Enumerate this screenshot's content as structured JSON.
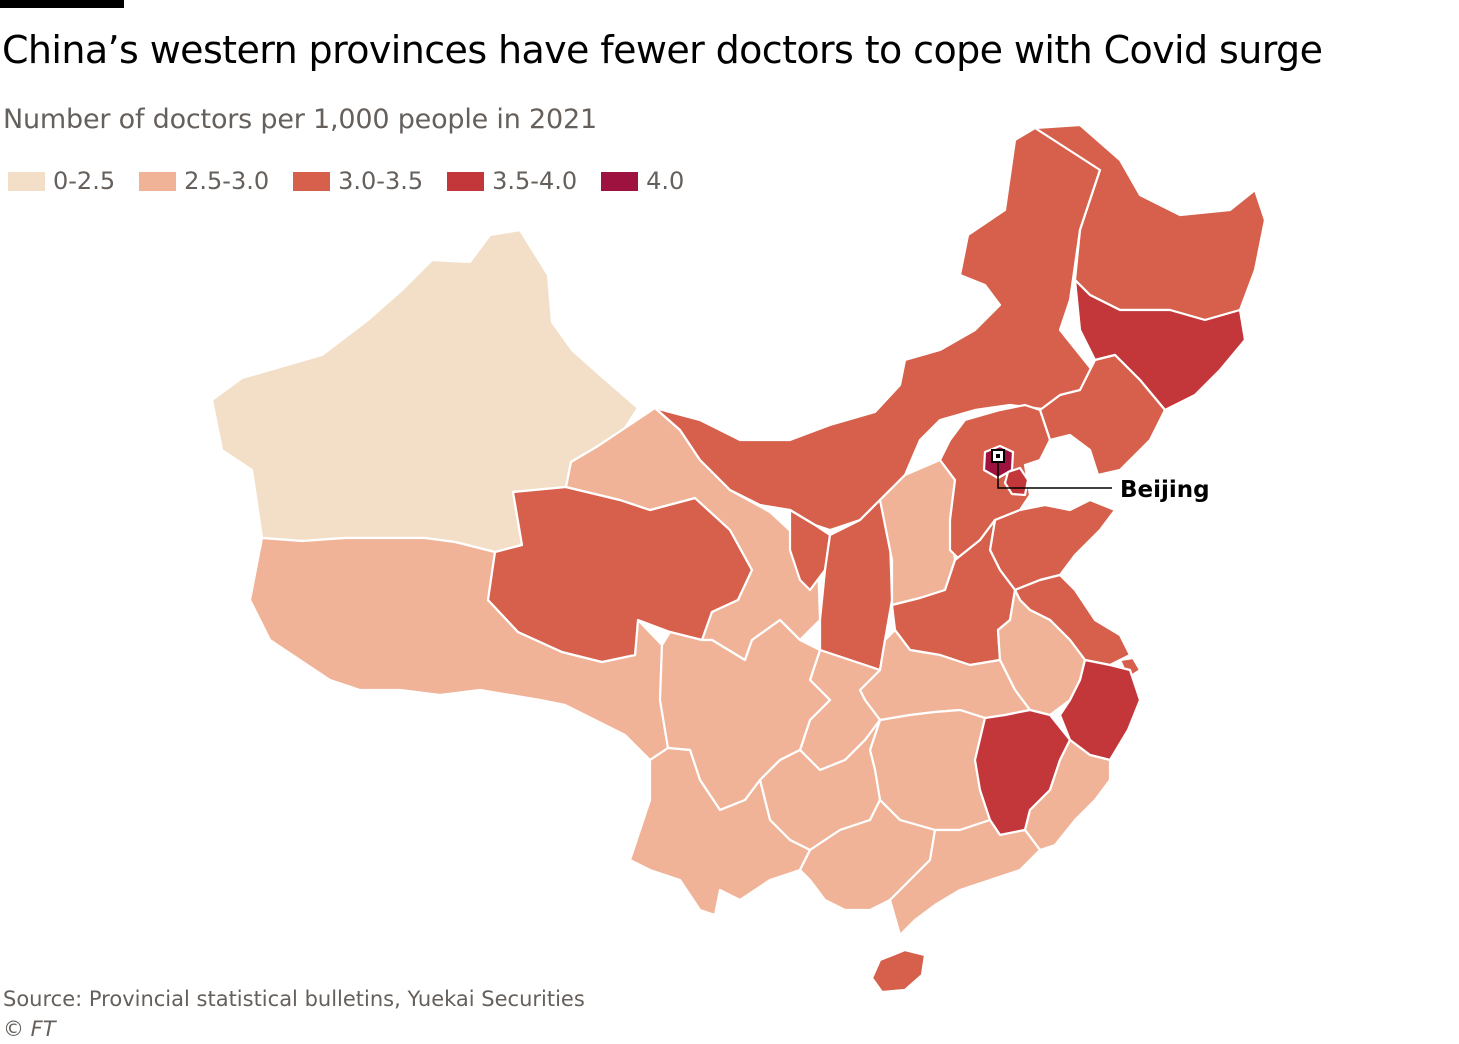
{
  "title": "China’s western provinces have fewer doctors to cope with Covid surge",
  "subtitle": "Number of doctors per 1,000 people in 2021",
  "legend": [
    {
      "label": "0-2.5",
      "color": "#f3dfc8"
    },
    {
      "label": "2.5-3.0",
      "color": "#f0b397"
    },
    {
      "label": "3.0-3.5",
      "color": "#d6604b"
    },
    {
      "label": "3.5-4.0",
      "color": "#c3363a"
    },
    {
      "label": "4.0",
      "color": "#9e1240"
    }
  ],
  "annotation": {
    "label": "Beijing"
  },
  "source": "Source: Provincial statistical bulletins, Yuekai Securities",
  "credit": "© FT",
  "map": {
    "regions": [
      {
        "id": "xinjiang",
        "class": "0-2.5"
      },
      {
        "id": "tibet",
        "class": "2.5-3.0"
      },
      {
        "id": "qinghai",
        "class": "3.0-3.5"
      },
      {
        "id": "gansu",
        "class": "2.5-3.0"
      },
      {
        "id": "inner-mongolia",
        "class": "3.0-3.5"
      },
      {
        "id": "ningxia",
        "class": "3.0-3.5"
      },
      {
        "id": "shaanxi",
        "class": "3.0-3.5"
      },
      {
        "id": "shanxi",
        "class": "2.5-3.0"
      },
      {
        "id": "heilongjiang",
        "class": "3.0-3.5"
      },
      {
        "id": "jilin",
        "class": "3.5-4.0"
      },
      {
        "id": "liaoning",
        "class": "3.0-3.5"
      },
      {
        "id": "hebei",
        "class": "3.0-3.5"
      },
      {
        "id": "beijing",
        "class": "4.0"
      },
      {
        "id": "tianjin",
        "class": "3.5-4.0"
      },
      {
        "id": "shandong",
        "class": "3.0-3.5"
      },
      {
        "id": "henan",
        "class": "3.0-3.5"
      },
      {
        "id": "jiangsu",
        "class": "3.0-3.5"
      },
      {
        "id": "shanghai",
        "class": "3.0-3.5"
      },
      {
        "id": "anhui",
        "class": "2.5-3.0"
      },
      {
        "id": "zhejiang",
        "class": "3.5-4.0"
      },
      {
        "id": "hubei",
        "class": "2.5-3.0"
      },
      {
        "id": "sichuan",
        "class": "2.5-3.0"
      },
      {
        "id": "chongqing",
        "class": "2.5-3.0"
      },
      {
        "id": "hunan",
        "class": "2.5-3.0"
      },
      {
        "id": "jiangxi",
        "class": "3.5-4.0"
      },
      {
        "id": "fujian",
        "class": "2.5-3.0"
      },
      {
        "id": "guizhou",
        "class": "2.5-3.0"
      },
      {
        "id": "yunnan",
        "class": "2.5-3.0"
      },
      {
        "id": "guangxi",
        "class": "2.5-3.0"
      },
      {
        "id": "guangdong",
        "class": "2.5-3.0"
      },
      {
        "id": "hainan",
        "class": "3.0-3.5"
      }
    ]
  }
}
